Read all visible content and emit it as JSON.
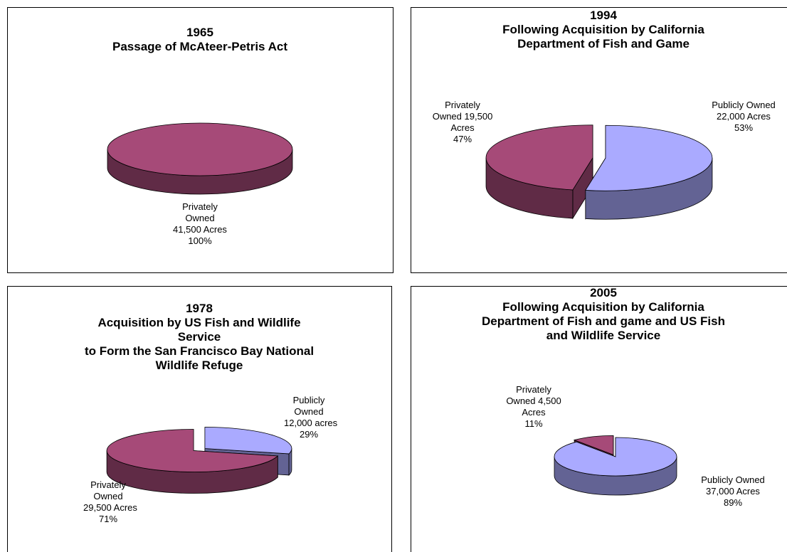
{
  "chart_data": [
    {
      "type": "pie",
      "title": "1965",
      "subtitle": [
        "Passage of McAteer-Petris Act"
      ],
      "categories": [
        "Privately Owned"
      ],
      "acres": [
        41500
      ],
      "acres_labels": [
        "41,500 Acres"
      ],
      "values": [
        100
      ],
      "value_labels": [
        "100%"
      ],
      "colors": [
        "#a64a78"
      ]
    },
    {
      "type": "pie",
      "title": "1994",
      "subtitle": [
        "Following Acquisition by California Department of Fish and Game"
      ],
      "categories": [
        "Publicly Owned",
        "Privately Owned"
      ],
      "acres": [
        22000,
        19500
      ],
      "acres_labels": [
        "22,000 Acres",
        "19,500 Acres"
      ],
      "values": [
        53,
        47
      ],
      "value_labels": [
        "53%",
        "47%"
      ],
      "colors": [
        "#aaaaff",
        "#a64a78"
      ]
    },
    {
      "type": "pie",
      "title": "1978",
      "subtitle": [
        "Acquisition by US Fish and Wildlife Service",
        "to Form the San Francisco Bay National Wildlife Refuge"
      ],
      "categories": [
        "Publicly Owned",
        "Privately Owned"
      ],
      "acres": [
        12000,
        29500
      ],
      "acres_labels": [
        "12,000 acres",
        "29,500 Acres"
      ],
      "values": [
        29,
        71
      ],
      "value_labels": [
        "29%",
        "71%"
      ],
      "colors": [
        "#aaaaff",
        "#a64a78"
      ]
    },
    {
      "type": "pie",
      "title": "2005",
      "subtitle": [
        "Following Acquisition by California Department of Fish and game and US Fish and Wildlife Service"
      ],
      "categories": [
        "Publicly Owned",
        "Privately Owned"
      ],
      "acres": [
        37000,
        4500
      ],
      "acres_labels": [
        "37,000 Acres",
        "4,500 Acres"
      ],
      "values": [
        89,
        11
      ],
      "value_labels": [
        "89%",
        "11%"
      ],
      "colors": [
        "#aaaaff",
        "#a64a78"
      ]
    }
  ]
}
